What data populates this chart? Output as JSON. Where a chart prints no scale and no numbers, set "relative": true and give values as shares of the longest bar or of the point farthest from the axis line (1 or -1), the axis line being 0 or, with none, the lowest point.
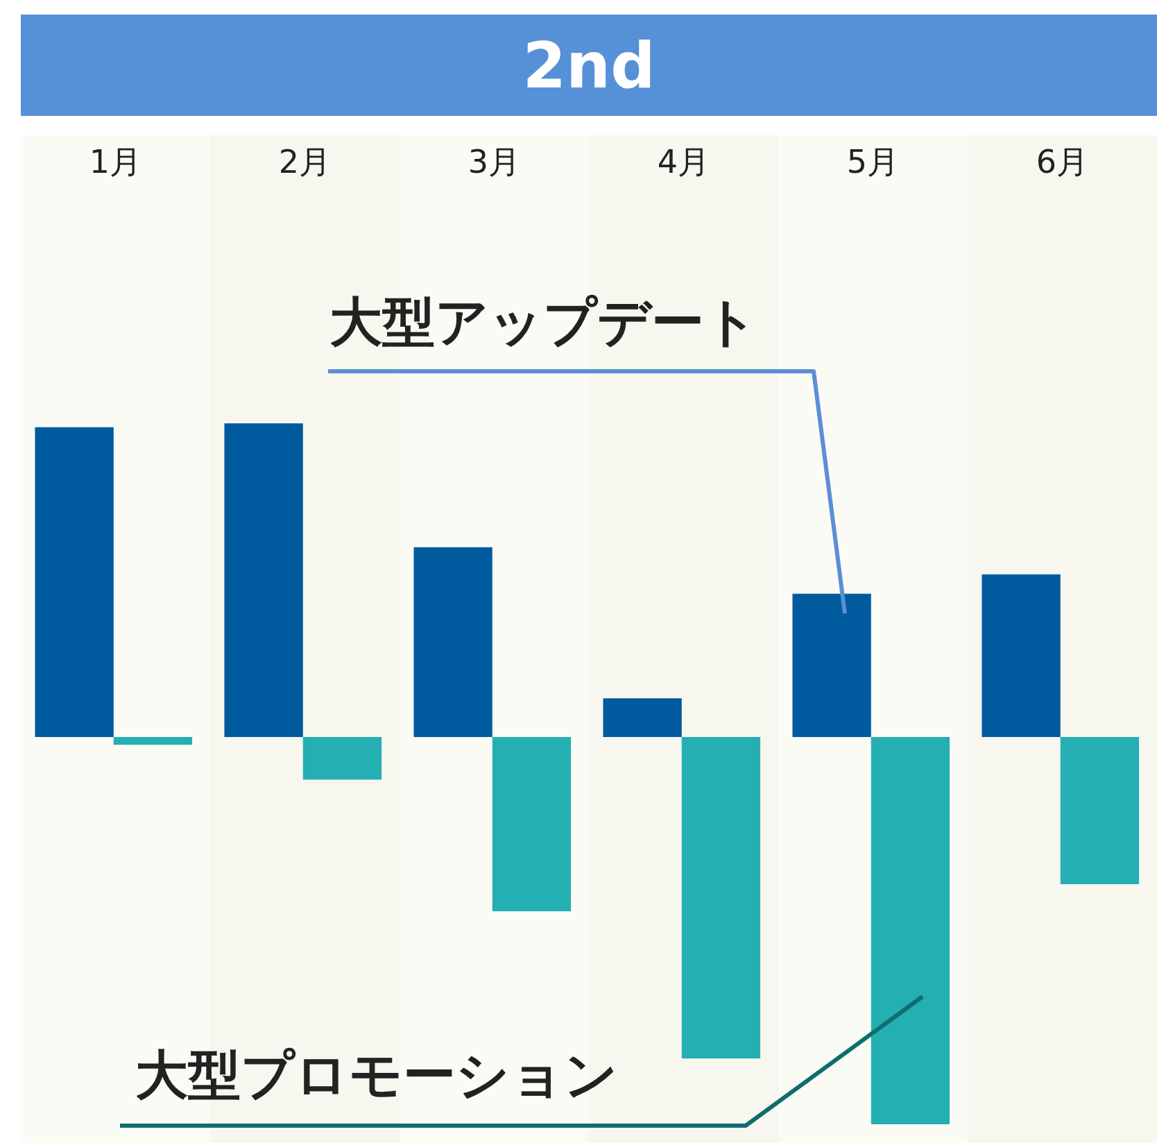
{
  "chart_data": {
    "type": "bar",
    "title": "2nd",
    "relative": true,
    "categories": [
      "1月",
      "2月",
      "3月",
      "4月",
      "5月",
      "6月"
    ],
    "series": [
      {
        "color": "#005b9e",
        "values": [
          0.8,
          0.81,
          0.49,
          0.1,
          0.37,
          0.42
        ]
      },
      {
        "color": "#24afb3",
        "values": [
          -0.02,
          -0.11,
          -0.45,
          -0.83,
          -1,
          -0.38
        ]
      }
    ],
    "annotations": [
      "大型アップデート",
      "大型プロモーション"
    ]
  }
}
